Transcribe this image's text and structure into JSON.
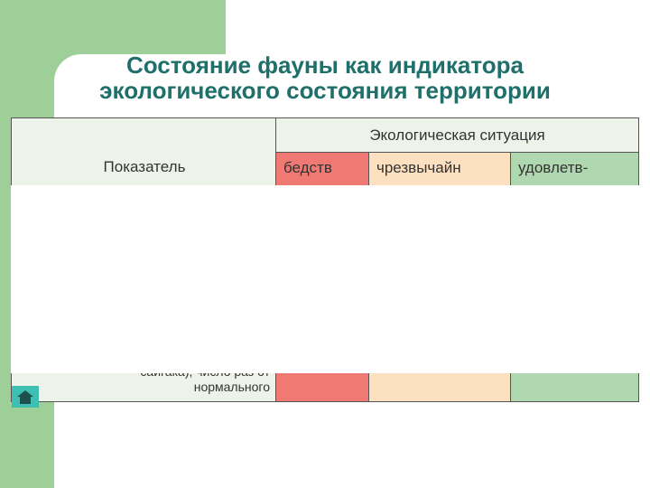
{
  "title": {
    "line1": "Состояние фауны как индикатора",
    "line2": "экологического состояния территории"
  },
  "table": {
    "header": {
      "indicator": "Показатель",
      "situation": "Экологическая ситуация"
    },
    "columns": [
      "бедств",
      "чрезвычайн",
      "удовлетв-"
    ],
    "last_row": {
      "line1": "сайгака), число раз от",
      "line2": "нормального"
    }
  }
}
